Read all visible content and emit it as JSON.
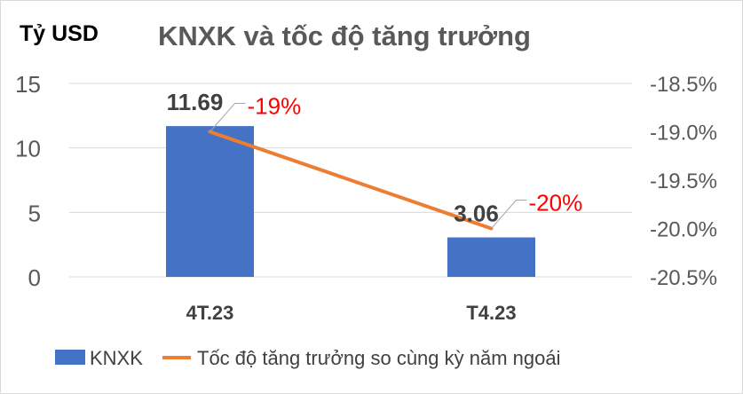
{
  "chart_data": {
    "type": "bar+line",
    "title": "KNXK và tốc độ tăng trưởng",
    "ylabel": "Tỷ USD",
    "categories": [
      "4T.23",
      "T4.23"
    ],
    "series": [
      {
        "name": "KNXK",
        "type": "bar",
        "axis": "left",
        "values": [
          11.69,
          3.06
        ],
        "labels": [
          "11.69",
          "3.06"
        ],
        "color": "#4472C4"
      },
      {
        "name": "Tốc độ tăng trưởng so cùng kỳ năm ngoái",
        "type": "line",
        "axis": "right",
        "values": [
          -19,
          -20
        ],
        "labels": [
          "-19%",
          "-20%"
        ],
        "color": "#ED7D31",
        "label_color": "#FF0000"
      }
    ],
    "left_axis": {
      "ylim": [
        0,
        15
      ],
      "ticks": [
        "0",
        "5",
        "10",
        "15"
      ]
    },
    "right_axis": {
      "ylim": [
        -20.5,
        -18.5
      ],
      "ticks": [
        "-20.5%",
        "-20.0%",
        "-19.5%",
        "-19.0%",
        "-18.5%"
      ]
    },
    "grid": true,
    "legend": "bottom"
  }
}
